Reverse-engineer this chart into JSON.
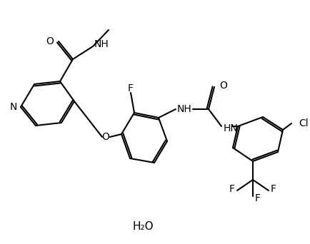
{
  "background_color": "#ffffff",
  "line_color": "#000000",
  "text_color": "#000000",
  "line_width": 1.5,
  "font_size": 9,
  "labels": {
    "N": "N",
    "O_link": "O",
    "NH1": "NH",
    "F": "F",
    "HN": "HN",
    "O_amide": "O",
    "O_urea": "O",
    "Cl": "Cl",
    "water": "H₂O"
  }
}
